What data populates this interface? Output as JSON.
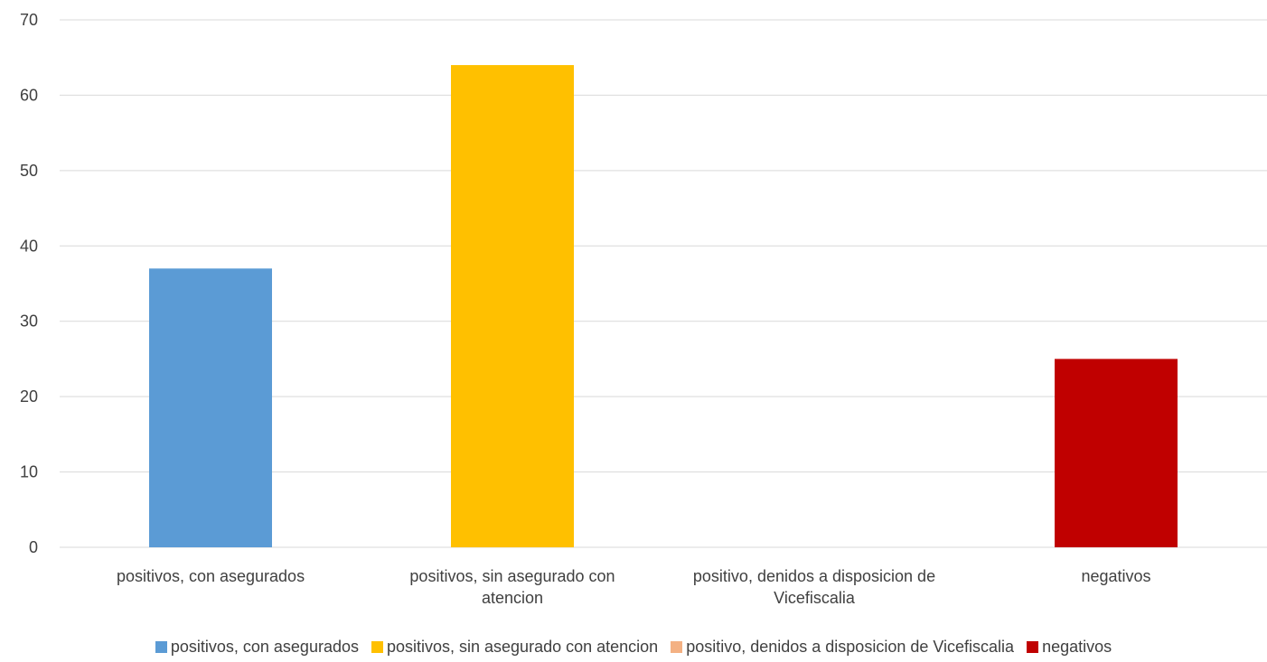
{
  "chart_data": {
    "type": "bar",
    "categories": [
      "positivos, con asegurados",
      "positivos, sin asegurado con atencion",
      "positivo, denidos a disposicion de Vicefiscalia",
      "negativos"
    ],
    "category_label_lines": [
      [
        "positivos, con asegurados"
      ],
      [
        "positivos, sin asegurado con",
        "atencion"
      ],
      [
        "positivo, denidos a disposicion de",
        "Vicefiscalia"
      ],
      [
        "negativos"
      ]
    ],
    "values": [
      37,
      64,
      0,
      25
    ],
    "colors": [
      "#5B9BD5",
      "#FFC000",
      "#F4B183",
      "#C00000"
    ],
    "yticks": [
      0,
      10,
      20,
      30,
      40,
      50,
      60,
      70
    ],
    "ylim": [
      0,
      70
    ],
    "grid": true,
    "gridline_color": "#D9D9D9",
    "legend_position": "bottom",
    "title": "",
    "xlabel": "",
    "ylabel": ""
  }
}
